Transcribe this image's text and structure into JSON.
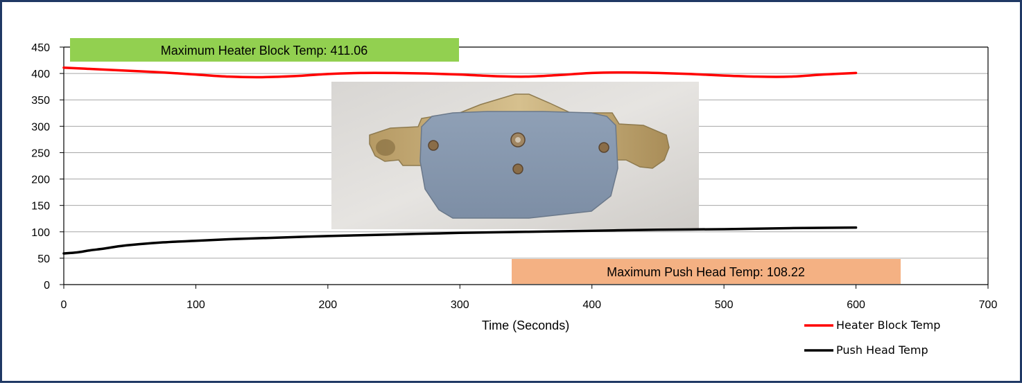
{
  "chart_data": {
    "type": "line",
    "title": "",
    "xlabel": "Time (Seconds)",
    "ylabel": "",
    "xlim": [
      0,
      700
    ],
    "ylim": [
      0,
      450
    ],
    "x_ticks": [
      0,
      100,
      200,
      300,
      400,
      500,
      600,
      700
    ],
    "y_ticks": [
      0,
      50,
      100,
      150,
      200,
      250,
      300,
      350,
      400,
      450
    ],
    "grid": "horizontal",
    "legend_position": "bottom-right",
    "series": [
      {
        "name": "Heater Block Temp",
        "color": "#ff0000",
        "x": [
          0,
          25,
          50,
          75,
          100,
          125,
          150,
          175,
          200,
          225,
          250,
          275,
          300,
          325,
          350,
          375,
          400,
          425,
          450,
          475,
          500,
          525,
          550,
          575,
          600
        ],
        "y": [
          411,
          408,
          405,
          402,
          398,
          394,
          393,
          395,
          399,
          401,
          401,
          400,
          398,
          395,
          394,
          397,
          401,
          402,
          401,
          399,
          396,
          394,
          394,
          398,
          401
        ]
      },
      {
        "name": "Push Head Temp",
        "color": "#000000",
        "x": [
          0,
          10,
          20,
          30,
          40,
          50,
          75,
          100,
          125,
          150,
          200,
          250,
          300,
          350,
          400,
          450,
          500,
          550,
          600
        ],
        "y": [
          59,
          61,
          65,
          68,
          72,
          75,
          80,
          83,
          86,
          88,
          92,
          95,
          98,
          100,
          102,
          104,
          105,
          107,
          108
        ]
      }
    ],
    "annotations": [
      {
        "text": "Maximum Heater Block Temp: 411.06",
        "color": "#92d050"
      },
      {
        "text": "Maximum Push Head Temp: 108.22",
        "color": "#f4b183"
      }
    ],
    "inset_image": "brake-pad-photo"
  }
}
